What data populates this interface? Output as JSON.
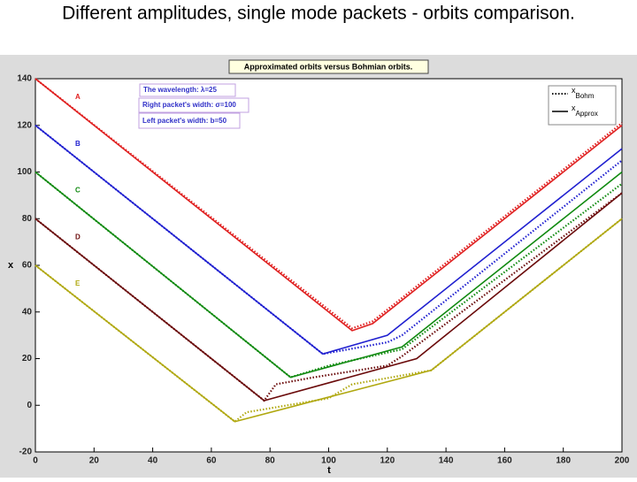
{
  "chart_data": {
    "type": "line",
    "slide_title": "Different amplitudes, single mode packets - orbits comparison.",
    "title": "Approximated orbits versus Bohmian orbits.",
    "x_label": "t",
    "y_label": "x",
    "xlim": [
      0,
      200
    ],
    "xticks": [
      0,
      20,
      40,
      60,
      80,
      100,
      120,
      140,
      160,
      180,
      200
    ],
    "ylim": [
      -20,
      140
    ],
    "yticks": [
      -20,
      0,
      20,
      40,
      60,
      80,
      100,
      120,
      140
    ],
    "annotations": [
      "The wavelength: λ=25",
      "Right packet's width: σ=100",
      "Left packet's width: b=50"
    ],
    "legend": [
      {
        "text": "x",
        "sub": "Bohm",
        "dashed": true
      },
      {
        "text": "x",
        "sub": "Approx",
        "dashed": false
      }
    ],
    "legend_position": "upper right",
    "orbits": [
      {
        "name": "A",
        "color": "#e02020",
        "approx": {
          "x": [
            0,
            108,
            115,
            200
          ],
          "values": [
            140,
            32,
            35,
            120
          ]
        },
        "bohm": {
          "x": [
            0,
            108,
            115,
            200
          ],
          "values": [
            140,
            33,
            36,
            121
          ]
        }
      },
      {
        "name": "B",
        "color": "#2020d0",
        "approx": {
          "x": [
            0,
            98,
            120,
            200
          ],
          "values": [
            120,
            22,
            30,
            110
          ]
        },
        "bohm": {
          "x": [
            0,
            98,
            120,
            125,
            200
          ],
          "values": [
            120,
            22,
            27,
            30,
            105
          ]
        }
      },
      {
        "name": "C",
        "color": "#108a10",
        "approx": {
          "x": [
            0,
            87,
            125,
            200
          ],
          "values": [
            100,
            12,
            25,
            100
          ]
        },
        "bohm": {
          "x": [
            0,
            87,
            100,
            125,
            200
          ],
          "values": [
            100,
            12,
            17,
            24,
            95
          ]
        }
      },
      {
        "name": "D",
        "color": "#6a0a0a",
        "approx": {
          "x": [
            0,
            78,
            130,
            200
          ],
          "values": [
            80,
            2,
            20,
            91
          ]
        },
        "bohm": {
          "x": [
            0,
            78,
            82,
            95,
            120,
            125,
            200
          ],
          "values": [
            80,
            2,
            9,
            12,
            17,
            21,
            91
          ]
        }
      },
      {
        "name": "E",
        "color": "#b0a810",
        "approx": {
          "x": [
            0,
            68,
            135,
            200
          ],
          "values": [
            60,
            -7,
            15,
            80
          ]
        },
        "bohm": {
          "x": [
            0,
            68,
            72,
            100,
            108,
            135,
            200
          ],
          "values": [
            60,
            -7,
            -3,
            3,
            9,
            15,
            80
          ]
        }
      }
    ]
  }
}
